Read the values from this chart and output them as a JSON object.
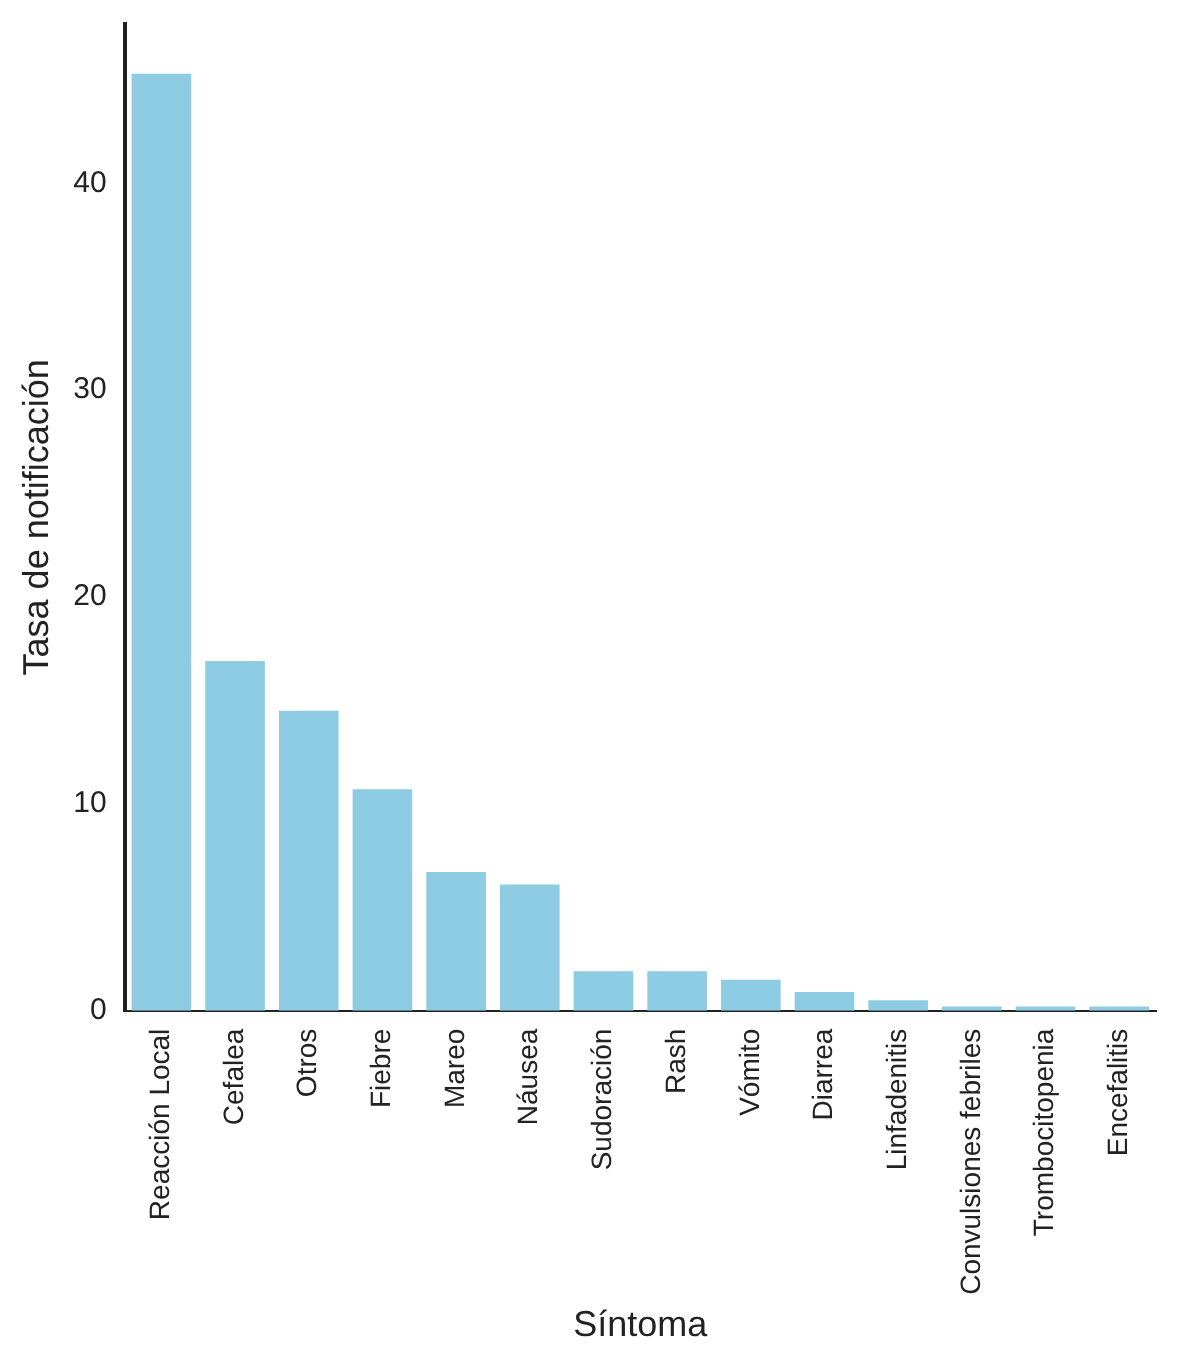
{
  "chart_data": {
    "type": "bar",
    "xlabel": "Síntoma",
    "ylabel": "Tasa de notificación",
    "categories": [
      "Reacción Local",
      "Cefalea",
      "Otros",
      "Fiebre",
      "Mareo",
      "Náusea",
      "Sudoración",
      "Rash",
      "Vómito",
      "Diarrea",
      "Linfadenitis",
      "Convulsiones febriles",
      "Trombocitopenia",
      "Encefalitis"
    ],
    "values": [
      45.3,
      16.9,
      14.5,
      10.7,
      6.7,
      6.1,
      1.9,
      1.9,
      1.5,
      0.9,
      0.5,
      0.2,
      0.2,
      0.2
    ],
    "color": "#8ecce3",
    "ylim": [
      0,
      47.7
    ],
    "yticks": [
      0,
      10,
      20,
      30,
      40
    ],
    "grid": false,
    "legend": false
  }
}
